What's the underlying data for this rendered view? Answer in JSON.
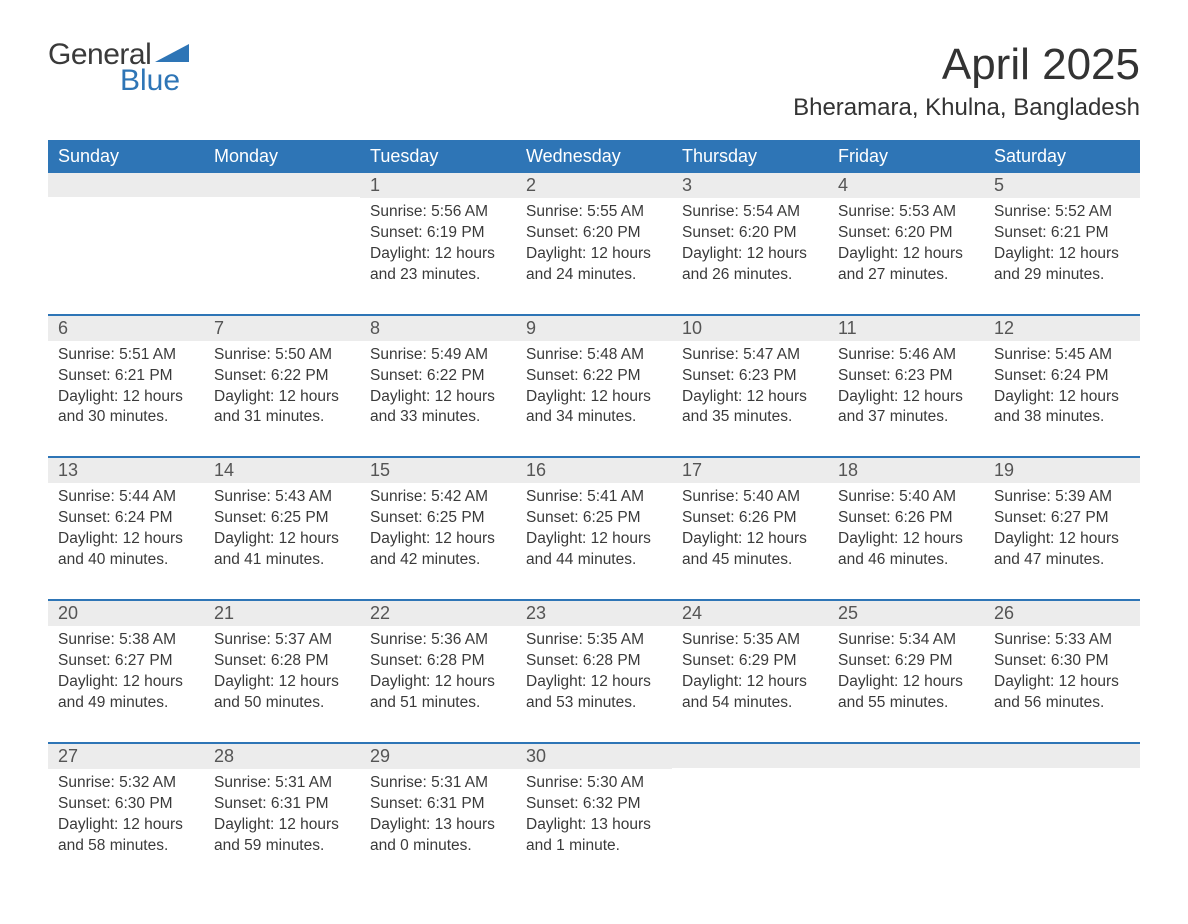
{
  "logo": {
    "word1": "General",
    "word2": "Blue"
  },
  "header": {
    "month_title": "April 2025",
    "location": "Bheramara, Khulna, Bangladesh"
  },
  "colors": {
    "brand_blue": "#2e75b6",
    "header_row_bg": "#2e75b6",
    "header_row_text": "#ffffff",
    "daynum_bg": "#ececec",
    "text": "#3a3a3a",
    "row_separator": "#2e75b6",
    "background": "#ffffff"
  },
  "typography": {
    "month_title_fontsize_pt": 33,
    "location_fontsize_pt": 18,
    "weekday_fontsize_pt": 14,
    "daynum_fontsize_pt": 14,
    "body_fontsize_pt": 12,
    "font_family": "Arial"
  },
  "calendar": {
    "weekdays": [
      "Sunday",
      "Monday",
      "Tuesday",
      "Wednesday",
      "Thursday",
      "Friday",
      "Saturday"
    ],
    "weeks": [
      [
        {
          "day": "",
          "sunrise": "",
          "sunset": "",
          "daylight": ""
        },
        {
          "day": "",
          "sunrise": "",
          "sunset": "",
          "daylight": ""
        },
        {
          "day": "1",
          "sunrise": "Sunrise: 5:56 AM",
          "sunset": "Sunset: 6:19 PM",
          "daylight": "Daylight: 12 hours and 23 minutes."
        },
        {
          "day": "2",
          "sunrise": "Sunrise: 5:55 AM",
          "sunset": "Sunset: 6:20 PM",
          "daylight": "Daylight: 12 hours and 24 minutes."
        },
        {
          "day": "3",
          "sunrise": "Sunrise: 5:54 AM",
          "sunset": "Sunset: 6:20 PM",
          "daylight": "Daylight: 12 hours and 26 minutes."
        },
        {
          "day": "4",
          "sunrise": "Sunrise: 5:53 AM",
          "sunset": "Sunset: 6:20 PM",
          "daylight": "Daylight: 12 hours and 27 minutes."
        },
        {
          "day": "5",
          "sunrise": "Sunrise: 5:52 AM",
          "sunset": "Sunset: 6:21 PM",
          "daylight": "Daylight: 12 hours and 29 minutes."
        }
      ],
      [
        {
          "day": "6",
          "sunrise": "Sunrise: 5:51 AM",
          "sunset": "Sunset: 6:21 PM",
          "daylight": "Daylight: 12 hours and 30 minutes."
        },
        {
          "day": "7",
          "sunrise": "Sunrise: 5:50 AM",
          "sunset": "Sunset: 6:22 PM",
          "daylight": "Daylight: 12 hours and 31 minutes."
        },
        {
          "day": "8",
          "sunrise": "Sunrise: 5:49 AM",
          "sunset": "Sunset: 6:22 PM",
          "daylight": "Daylight: 12 hours and 33 minutes."
        },
        {
          "day": "9",
          "sunrise": "Sunrise: 5:48 AM",
          "sunset": "Sunset: 6:22 PM",
          "daylight": "Daylight: 12 hours and 34 minutes."
        },
        {
          "day": "10",
          "sunrise": "Sunrise: 5:47 AM",
          "sunset": "Sunset: 6:23 PM",
          "daylight": "Daylight: 12 hours and 35 minutes."
        },
        {
          "day": "11",
          "sunrise": "Sunrise: 5:46 AM",
          "sunset": "Sunset: 6:23 PM",
          "daylight": "Daylight: 12 hours and 37 minutes."
        },
        {
          "day": "12",
          "sunrise": "Sunrise: 5:45 AM",
          "sunset": "Sunset: 6:24 PM",
          "daylight": "Daylight: 12 hours and 38 minutes."
        }
      ],
      [
        {
          "day": "13",
          "sunrise": "Sunrise: 5:44 AM",
          "sunset": "Sunset: 6:24 PM",
          "daylight": "Daylight: 12 hours and 40 minutes."
        },
        {
          "day": "14",
          "sunrise": "Sunrise: 5:43 AM",
          "sunset": "Sunset: 6:25 PM",
          "daylight": "Daylight: 12 hours and 41 minutes."
        },
        {
          "day": "15",
          "sunrise": "Sunrise: 5:42 AM",
          "sunset": "Sunset: 6:25 PM",
          "daylight": "Daylight: 12 hours and 42 minutes."
        },
        {
          "day": "16",
          "sunrise": "Sunrise: 5:41 AM",
          "sunset": "Sunset: 6:25 PM",
          "daylight": "Daylight: 12 hours and 44 minutes."
        },
        {
          "day": "17",
          "sunrise": "Sunrise: 5:40 AM",
          "sunset": "Sunset: 6:26 PM",
          "daylight": "Daylight: 12 hours and 45 minutes."
        },
        {
          "day": "18",
          "sunrise": "Sunrise: 5:40 AM",
          "sunset": "Sunset: 6:26 PM",
          "daylight": "Daylight: 12 hours and 46 minutes."
        },
        {
          "day": "19",
          "sunrise": "Sunrise: 5:39 AM",
          "sunset": "Sunset: 6:27 PM",
          "daylight": "Daylight: 12 hours and 47 minutes."
        }
      ],
      [
        {
          "day": "20",
          "sunrise": "Sunrise: 5:38 AM",
          "sunset": "Sunset: 6:27 PM",
          "daylight": "Daylight: 12 hours and 49 minutes."
        },
        {
          "day": "21",
          "sunrise": "Sunrise: 5:37 AM",
          "sunset": "Sunset: 6:28 PM",
          "daylight": "Daylight: 12 hours and 50 minutes."
        },
        {
          "day": "22",
          "sunrise": "Sunrise: 5:36 AM",
          "sunset": "Sunset: 6:28 PM",
          "daylight": "Daylight: 12 hours and 51 minutes."
        },
        {
          "day": "23",
          "sunrise": "Sunrise: 5:35 AM",
          "sunset": "Sunset: 6:28 PM",
          "daylight": "Daylight: 12 hours and 53 minutes."
        },
        {
          "day": "24",
          "sunrise": "Sunrise: 5:35 AM",
          "sunset": "Sunset: 6:29 PM",
          "daylight": "Daylight: 12 hours and 54 minutes."
        },
        {
          "day": "25",
          "sunrise": "Sunrise: 5:34 AM",
          "sunset": "Sunset: 6:29 PM",
          "daylight": "Daylight: 12 hours and 55 minutes."
        },
        {
          "day": "26",
          "sunrise": "Sunrise: 5:33 AM",
          "sunset": "Sunset: 6:30 PM",
          "daylight": "Daylight: 12 hours and 56 minutes."
        }
      ],
      [
        {
          "day": "27",
          "sunrise": "Sunrise: 5:32 AM",
          "sunset": "Sunset: 6:30 PM",
          "daylight": "Daylight: 12 hours and 58 minutes."
        },
        {
          "day": "28",
          "sunrise": "Sunrise: 5:31 AM",
          "sunset": "Sunset: 6:31 PM",
          "daylight": "Daylight: 12 hours and 59 minutes."
        },
        {
          "day": "29",
          "sunrise": "Sunrise: 5:31 AM",
          "sunset": "Sunset: 6:31 PM",
          "daylight": "Daylight: 13 hours and 0 minutes."
        },
        {
          "day": "30",
          "sunrise": "Sunrise: 5:30 AM",
          "sunset": "Sunset: 6:32 PM",
          "daylight": "Daylight: 13 hours and 1 minute."
        },
        {
          "day": "",
          "sunrise": "",
          "sunset": "",
          "daylight": ""
        },
        {
          "day": "",
          "sunrise": "",
          "sunset": "",
          "daylight": ""
        },
        {
          "day": "",
          "sunrise": "",
          "sunset": "",
          "daylight": ""
        }
      ]
    ]
  }
}
